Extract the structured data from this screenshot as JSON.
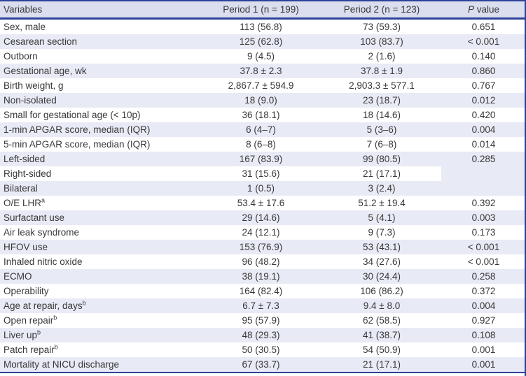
{
  "colors": {
    "rule_navy": "#2e4199",
    "header_bg": "#dadeef",
    "row_shaded_bg": "#e8eaf5",
    "text": "#383838"
  },
  "table": {
    "header": {
      "variables": "Variables",
      "period1": "Period 1 (n = 199)",
      "period2": "Period 2 (n = 123)",
      "p_italic": "P",
      "p_rest": " value"
    },
    "rows": [
      {
        "variable": "Sex, male",
        "period1": "113 (56.8)",
        "period2": "73 (59.3)",
        "p": "0.651"
      },
      {
        "variable": "Cesarean section",
        "period1": "125 (62.8)",
        "period2": "103 (83.7)",
        "p": "< 0.001"
      },
      {
        "variable": "Outborn",
        "period1": "9 (4.5)",
        "period2": "2 (1.6)",
        "p": "0.140"
      },
      {
        "variable": "Gestational age, wk",
        "period1": "37.8 ± 2.3",
        "period2": "37.8 ± 1.9",
        "p": "0.860"
      },
      {
        "variable": "Birth weight, g",
        "period1": "2,867.7 ± 594.9",
        "period2": "2,903.3 ± 577.1",
        "p": "0.767"
      },
      {
        "variable": "Non-isolated",
        "period1": "18 (9.0)",
        "period2": "23 (18.7)",
        "p": "0.012"
      },
      {
        "variable": "Small for gestational age (< 10p)",
        "period1": "36 (18.1)",
        "period2": "18 (14.6)",
        "p": "0.420"
      },
      {
        "variable": "1-min APGAR score, median (IQR)",
        "period1": "6 (4–7)",
        "period2": "5 (3–6)",
        "p": "0.004"
      },
      {
        "variable": "5-min APGAR score, median (IQR)",
        "period1": "8 (6–8)",
        "period2": "7 (6–8)",
        "p": "0.014"
      },
      {
        "variable": "Left-sided",
        "period1": "167 (83.9)",
        "period2": "99 (80.5)",
        "p": "0.285"
      },
      {
        "variable": "Right-sided",
        "period1": "31 (15.6)",
        "period2": "21 (17.1)",
        "p": "",
        "p_shaded": true
      },
      {
        "variable": "Bilateral",
        "period1": "1 (0.5)",
        "period2": "3 (2.4)",
        "p": ""
      },
      {
        "variable": "O/E LHR",
        "sup": "a",
        "period1": "53.4 ± 17.6",
        "period2": "51.2 ± 19.4",
        "p": "0.392"
      },
      {
        "variable": "Surfactant use",
        "period1": "29 (14.6)",
        "period2": "5 (4.1)",
        "p": "0.003"
      },
      {
        "variable": "Air leak syndrome",
        "period1": "24 (12.1)",
        "period2": "9 (7.3)",
        "p": "0.173"
      },
      {
        "variable": "HFOV use",
        "period1": "153 (76.9)",
        "period2": "53 (43.1)",
        "p": "< 0.001"
      },
      {
        "variable": "Inhaled nitric oxide",
        "period1": "96 (48.2)",
        "period2": "34 (27.6)",
        "p": "< 0.001"
      },
      {
        "variable": "ECMO",
        "period1": "38 (19.1)",
        "period2": "30 (24.4)",
        "p": "0.258"
      },
      {
        "variable": "Operability",
        "period1": "164 (82.4)",
        "period2": "106 (86.2)",
        "p": "0.372"
      },
      {
        "variable": "Age at repair, days",
        "sup": "b",
        "period1": "6.7 ± 7.3",
        "period2": "9.4 ± 8.0",
        "p": "0.004"
      },
      {
        "variable": "Open repair",
        "sup": "b",
        "period1": "95 (57.9)",
        "period2": "62 (58.5)",
        "p": "0.927"
      },
      {
        "variable": "Liver up",
        "sup": "b",
        "period1": "48 (29.3)",
        "period2": "41 (38.7)",
        "p": "0.108"
      },
      {
        "variable": "Patch repair",
        "sup": "b",
        "period1": "50 (30.5)",
        "period2": "54 (50.9)",
        "p": "0.001"
      },
      {
        "variable": "Mortality at NICU discharge",
        "period1": "67 (33.7)",
        "period2": "21 (17.1)",
        "p": "0.001"
      }
    ]
  }
}
